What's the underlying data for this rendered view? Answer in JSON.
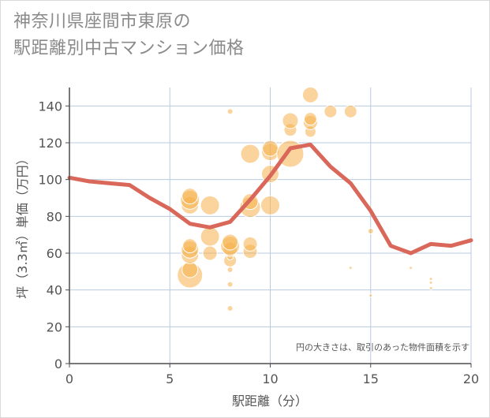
{
  "title_lines": [
    "神奈川県座間市東原の",
    "駅距離別中古マンション価格"
  ],
  "note": "円の大きさは、取引のあった物件面積を示す",
  "colors": {
    "bubble": "#f5b04a",
    "line": "#d9685a",
    "grid": "#b8cbe0",
    "axis": "#4d4d4d"
  },
  "chart_data": {
    "type": "scatter",
    "xlabel": "駅距離（分）",
    "ylabel": "坪（3.3㎡）単価（万円）",
    "xlim": [
      0,
      20
    ],
    "ylim": [
      0,
      150
    ],
    "xticks": [
      0,
      5,
      10,
      15,
      20
    ],
    "yticks": [
      0,
      20,
      40,
      60,
      80,
      100,
      120,
      140
    ],
    "grid": true,
    "scatter_points": [
      {
        "x": 6,
        "y": 48,
        "r": 16
      },
      {
        "x": 6,
        "y": 51,
        "r": 10
      },
      {
        "x": 6,
        "y": 59,
        "r": 11
      },
      {
        "x": 6,
        "y": 62,
        "r": 11
      },
      {
        "x": 6,
        "y": 64,
        "r": 9
      },
      {
        "x": 6,
        "y": 86,
        "r": 11
      },
      {
        "x": 6,
        "y": 89,
        "r": 12
      },
      {
        "x": 6,
        "y": 91,
        "r": 10
      },
      {
        "x": 7,
        "y": 60,
        "r": 9
      },
      {
        "x": 7,
        "y": 69,
        "r": 12
      },
      {
        "x": 7,
        "y": 86,
        "r": 12
      },
      {
        "x": 8,
        "y": 30,
        "r": 3.5
      },
      {
        "x": 8,
        "y": 43,
        "r": 3.5
      },
      {
        "x": 8,
        "y": 51,
        "r": 3.5
      },
      {
        "x": 8,
        "y": 56,
        "r": 8
      },
      {
        "x": 8,
        "y": 58,
        "r": 4
      },
      {
        "x": 8,
        "y": 62,
        "r": 9
      },
      {
        "x": 8,
        "y": 64,
        "r": 12
      },
      {
        "x": 8,
        "y": 66,
        "r": 10
      },
      {
        "x": 8,
        "y": 137,
        "r": 3.5
      },
      {
        "x": 9,
        "y": 61,
        "r": 9
      },
      {
        "x": 9,
        "y": 65,
        "r": 9
      },
      {
        "x": 9,
        "y": 85,
        "r": 13
      },
      {
        "x": 9,
        "y": 88,
        "r": 10
      },
      {
        "x": 9,
        "y": 114,
        "r": 12
      },
      {
        "x": 10,
        "y": 86,
        "r": 12
      },
      {
        "x": 10,
        "y": 103,
        "r": 11
      },
      {
        "x": 10,
        "y": 115,
        "r": 11
      },
      {
        "x": 10,
        "y": 117,
        "r": 10
      },
      {
        "x": 11,
        "y": 114,
        "r": 17
      },
      {
        "x": 11,
        "y": 127,
        "r": 8
      },
      {
        "x": 11,
        "y": 132,
        "r": 10
      },
      {
        "x": 12,
        "y": 126,
        "r": 7
      },
      {
        "x": 12,
        "y": 131,
        "r": 9
      },
      {
        "x": 12,
        "y": 133,
        "r": 8
      },
      {
        "x": 12,
        "y": 146,
        "r": 10
      },
      {
        "x": 13,
        "y": 137,
        "r": 8
      },
      {
        "x": 14,
        "y": 52,
        "r": 2
      },
      {
        "x": 14,
        "y": 137,
        "r": 8
      },
      {
        "x": 15,
        "y": 37,
        "r": 2
      },
      {
        "x": 15,
        "y": 72,
        "r": 3.5
      },
      {
        "x": 17,
        "y": 52,
        "r": 2
      },
      {
        "x": 18,
        "y": 41,
        "r": 2
      },
      {
        "x": 18,
        "y": 44,
        "r": 2
      },
      {
        "x": 18,
        "y": 46,
        "r": 2
      }
    ],
    "line": {
      "x": [
        0,
        1,
        2,
        3,
        4,
        5,
        6,
        7,
        8,
        9,
        10,
        11,
        12,
        13,
        14,
        15,
        16,
        17,
        18,
        19,
        20
      ],
      "y": [
        101,
        99,
        98,
        97,
        90,
        84,
        76,
        74,
        77,
        89,
        102,
        117,
        119,
        107,
        98,
        83,
        64,
        60,
        65,
        64,
        67
      ]
    }
  }
}
